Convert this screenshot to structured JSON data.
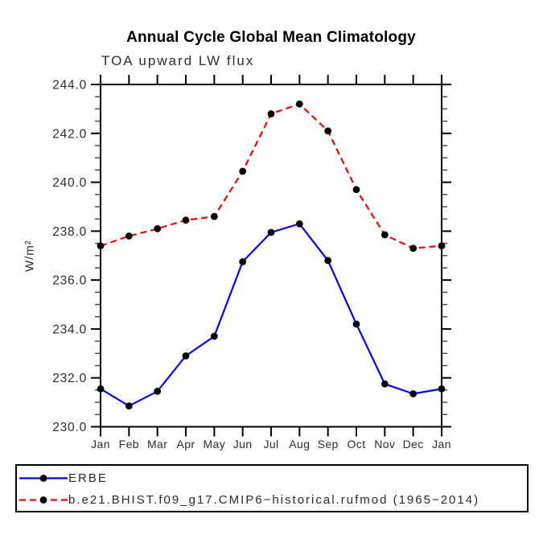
{
  "chart_data": {
    "type": "line",
    "title": "Annual Cycle Global Mean Climatology",
    "subtitle": "TOA upward LW flux",
    "xlabel": "",
    "ylabel": "W/m²",
    "categories": [
      "Jan",
      "Feb",
      "Mar",
      "Apr",
      "May",
      "Jun",
      "Jul",
      "Aug",
      "Sep",
      "Oct",
      "Nov",
      "Dec",
      "Jan"
    ],
    "ylim": [
      230.0,
      244.0
    ],
    "ytick_step": 2.0,
    "yminor_step": 0.5,
    "ytick_labels": [
      "230.0",
      "232.0",
      "234.0",
      "236.0",
      "238.0",
      "240.0",
      "242.0",
      "244.0"
    ],
    "grid": false,
    "legend_position": "bottom-box",
    "axis_color": "#000000",
    "marker": "filled-circle",
    "marker_color": "#000000",
    "series": [
      {
        "name": "ERBE",
        "color": "#0000ff",
        "line_style": "solid",
        "values": [
          231.55,
          230.85,
          231.45,
          232.9,
          233.7,
          236.75,
          237.95,
          238.3,
          236.8,
          234.2,
          231.75,
          231.35,
          231.55
        ]
      },
      {
        "name": "b.e21.BHIST.f09_g17.CMIP6−historical.rufmod (1965−2014)",
        "color": "#ff0000",
        "line_style": "dashed",
        "values": [
          237.4,
          237.8,
          238.1,
          238.45,
          238.6,
          240.45,
          242.8,
          243.2,
          242.1,
          239.7,
          237.85,
          237.3,
          237.4
        ]
      }
    ]
  }
}
